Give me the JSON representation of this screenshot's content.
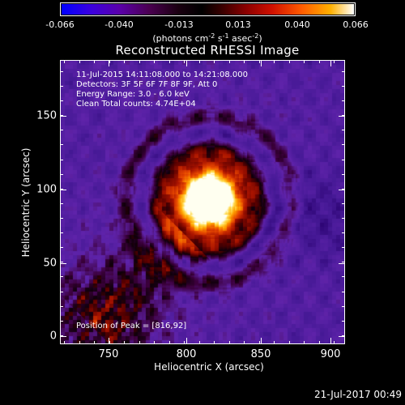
{
  "colorbar": {
    "tick_labels": [
      "-0.066",
      "-0.040",
      "-0.013",
      "0.013",
      "0.040",
      "0.066"
    ],
    "tick_values": [
      -0.066,
      -0.04,
      -0.013,
      0.013,
      0.04,
      0.066
    ],
    "range": [
      -0.066,
      0.066
    ],
    "unit_prefix": "(photons cm",
    "unit_exp1": "-2",
    "unit_mid1": " s",
    "unit_exp2": "-1",
    "unit_mid2": " asec",
    "unit_exp3": "-2",
    "unit_suffix": ")",
    "colormap": [
      "#0000ff",
      "#5a00a8",
      "#000000",
      "#8a0000",
      "#ff5a00",
      "#ffb000",
      "#ffffff"
    ]
  },
  "title": "Reconstructed RHESSI Image",
  "info": {
    "line1": "11-Jul-2015 14:11:08.000 to 14:21:08.000",
    "line2": "Detectors: 3F 5F 6F 7F 8F 9F, Att 0",
    "line3": "Energy Range: 3.0 - 6.0 keV",
    "line4": "Clean     Total counts: 4.74E+04",
    "peak": "Position of Peak = [816,92]"
  },
  "axes": {
    "xlabel": "Heliocentric X (arcsec)",
    "ylabel": "Heliocentric Y (arcsec)",
    "xticks": [
      "750",
      "800",
      "850",
      "900"
    ],
    "xtick_values": [
      750,
      800,
      850,
      900
    ],
    "yticks": [
      "0",
      "50",
      "100",
      "150"
    ],
    "ytick_values": [
      0,
      50,
      100,
      150
    ],
    "xlim": [
      716,
      908
    ],
    "ylim": [
      -6,
      187
    ]
  },
  "image": {
    "type": "heatmap",
    "peak_x": 816,
    "peak_y": 92,
    "secondary_source": "lower-left"
  },
  "footer": {
    "timestamp": "21-Jul-2017 00:49"
  }
}
